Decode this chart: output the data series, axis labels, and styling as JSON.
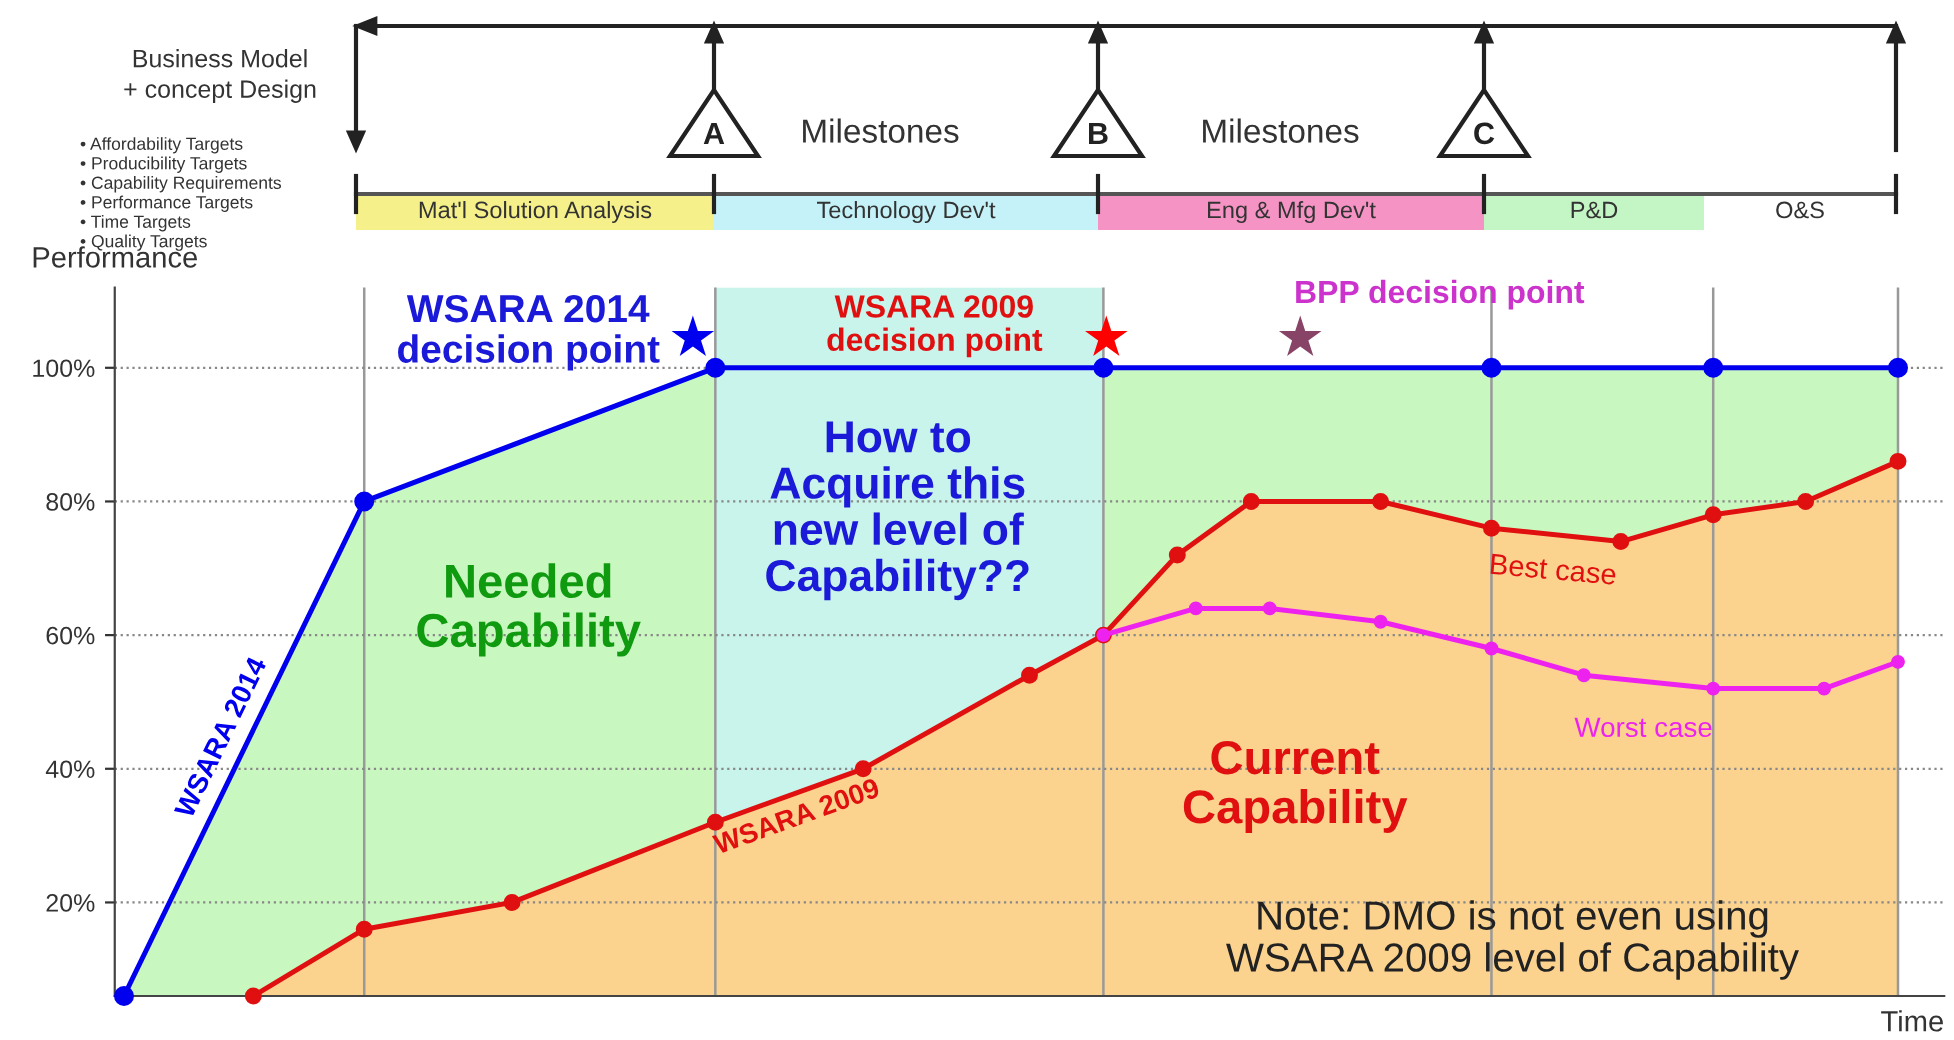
{
  "chart_data": [
    {
      "type": "line",
      "xlabel": "Time",
      "ylabel": "Performance",
      "categories": [
        null,
        null,
        null,
        null,
        null,
        null,
        null,
        null,
        null,
        null,
        null,
        null,
        null,
        null,
        null,
        null,
        null,
        null,
        null,
        null,
        null,
        null,
        null,
        null,
        null,
        null,
        null,
        null,
        null,
        null,
        null,
        null,
        null,
        null,
        null,
        null,
        null,
        null,
        null,
        null,
        null,
        null,
        null,
        null,
        null,
        null,
        null,
        null,
        null,
        null,
        null,
        null,
        null,
        null,
        null,
        null,
        null,
        null,
        null,
        null,
        null,
        null,
        null,
        null,
        null,
        null,
        null,
        null,
        null,
        null,
        null,
        null,
        null,
        null,
        null,
        null,
        null,
        null,
        null,
        null,
        null,
        null,
        null,
        null,
        null,
        null,
        null,
        null,
        null,
        null,
        null,
        null,
        null,
        null,
        null,
        null,
        null,
        null,
        null
      ],
      "ylim": [
        6,
        112
      ],
      "yticks": [
        {
          "value": 20,
          "label": "20%"
        },
        {
          "value": 40,
          "label": "40%"
        },
        {
          "value": 60,
          "label": "60%"
        },
        {
          "value": 80,
          "label": "80%"
        },
        {
          "value": 100,
          "label": "100%"
        }
      ],
      "tick_labels": "y",
      "grid": true,
      "marker": "circle",
      "line_style": "solid",
      "series": [
        {
          "name": "WSARA 2014",
          "type": "line",
          "color": "#0000ee",
          "values": [
            6,
            null,
            null,
            null,
            null,
            null,
            null,
            null,
            null,
            null,
            null,
            null,
            null,
            80,
            null,
            null,
            null,
            null,
            null,
            null,
            null,
            null,
            null,
            null,
            null,
            null,
            null,
            null,
            null,
            null,
            null,
            null,
            100,
            null,
            null,
            null,
            null,
            null,
            null,
            null,
            null,
            null,
            null,
            null,
            null,
            null,
            null,
            null,
            null,
            null,
            null,
            null,
            null,
            100,
            null,
            null,
            null,
            null,
            null,
            null,
            null,
            null,
            null,
            null,
            null,
            null,
            null,
            null,
            null,
            null,
            null,
            null,
            null,
            null,
            100,
            null,
            null,
            null,
            null,
            null,
            null,
            null,
            null,
            null,
            null,
            null,
            100,
            null,
            null,
            null,
            null,
            null,
            null,
            null,
            null,
            null,
            100,
            null,
            null
          ]
        },
        {
          "name": "WSARA 2009",
          "type": "line",
          "color": "#e01010",
          "values": [
            null,
            null,
            null,
            null,
            null,
            null,
            null,
            6,
            null,
            null,
            null,
            null,
            null,
            16,
            null,
            null,
            null,
            null,
            null,
            null,
            null,
            20,
            null,
            null,
            null,
            null,
            null,
            null,
            null,
            null,
            null,
            null,
            32,
            null,
            null,
            null,
            null,
            null,
            null,
            null,
            40,
            null,
            null,
            null,
            null,
            null,
            null,
            null,
            null,
            54,
            null,
            null,
            null,
            60,
            null,
            null,
            null,
            72,
            null,
            null,
            null,
            80,
            null,
            null,
            null,
            null,
            null,
            null,
            80,
            null,
            null,
            null,
            null,
            null,
            76,
            null,
            null,
            null,
            null,
            null,
            null,
            74,
            null,
            null,
            null,
            null,
            78,
            null,
            null,
            null,
            null,
            80,
            null,
            null,
            null,
            null,
            86,
            null,
            null
          ]
        },
        {
          "name": "Worst case",
          "type": "line",
          "color": "#ee22ee",
          "values": [
            null,
            null,
            null,
            null,
            null,
            null,
            null,
            null,
            null,
            null,
            null,
            null,
            null,
            null,
            null,
            null,
            null,
            null,
            null,
            null,
            null,
            null,
            null,
            null,
            null,
            null,
            null,
            null,
            null,
            null,
            null,
            null,
            null,
            null,
            null,
            null,
            null,
            null,
            null,
            null,
            null,
            null,
            null,
            null,
            null,
            null,
            null,
            null,
            null,
            null,
            null,
            null,
            null,
            60,
            null,
            null,
            null,
            null,
            64,
            null,
            null,
            null,
            64,
            null,
            null,
            null,
            null,
            null,
            62,
            null,
            null,
            null,
            null,
            null,
            58,
            null,
            null,
            null,
            null,
            54,
            null,
            null,
            null,
            null,
            null,
            null,
            52,
            null,
            null,
            null,
            null,
            null,
            52,
            null,
            null,
            null,
            56,
            null,
            null
          ]
        }
      ],
      "annotations": [
        "WSARA 2014\ndecision point",
        "WSARA 2009\ndecision point",
        "BPP decision point",
        "Needed\nCapability",
        "Current\nCapability",
        "Best case",
        "Note: DMO is not even using\nWSARA 2009 level of Capability",
        "How to\nAcquire this\nnew level of\nCapability??"
      ]
    },
    {
      "type": "other",
      "categories": [
        "Mat'l Solution Analysis",
        "Technology Dev't",
        "Eng & Mfg Dev't",
        "P&D",
        "O&S"
      ],
      "colors": [
        "#f5f08a",
        "#c4f2f8",
        "#f594c4",
        "#c4f5c4",
        "#ffffff"
      ],
      "annotations": [
        "Business Model\n+ concept Design",
        "• Affordability Targets\n• Producibility Targets\n• Capability Requirements\n• Performance Targets\n• Time Targets\n• Quality Targets",
        "A",
        "Milestones",
        "B",
        "Milestones",
        "C"
      ]
    }
  ]
}
